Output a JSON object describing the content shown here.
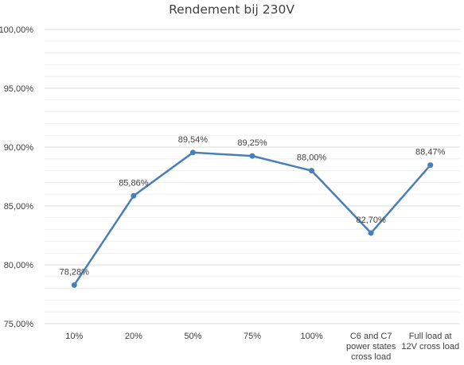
{
  "chart_data": {
    "type": "line",
    "title": "Rendement bij 230V",
    "categories": [
      "10%",
      "20%",
      "50%",
      "75%",
      "100%",
      "C6 and C7\npower states\ncross load",
      "Full load at\n12V cross load"
    ],
    "series": [
      {
        "values": [
          78.28,
          85.86,
          89.54,
          89.25,
          88.0,
          82.7,
          88.47
        ],
        "data_labels": [
          "78,28%",
          "85,86%",
          "89,54%",
          "89,25%",
          "88,00%",
          "82,70%",
          "88,47%"
        ]
      }
    ],
    "ylim": [
      75,
      100
    ],
    "y_ticks": [
      75,
      80,
      85,
      90,
      95,
      100
    ],
    "y_tick_labels": [
      "75,00%",
      "80,00%",
      "85,00%",
      "90,00%",
      "95,00%",
      "100,00%"
    ],
    "grid": true,
    "legend": "none",
    "colors": {
      "line": "#4a7ebb",
      "text": "#404040",
      "grid": "#d9d9d9"
    }
  }
}
